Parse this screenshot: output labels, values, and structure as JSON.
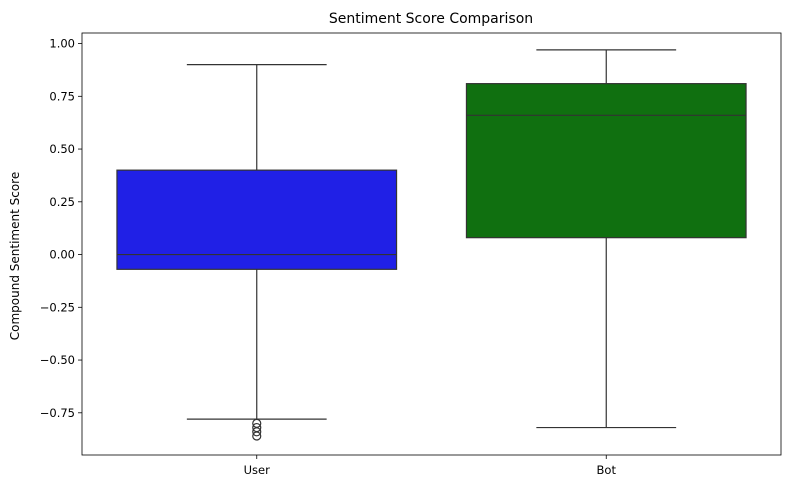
{
  "chart_data": {
    "type": "box",
    "title": "Sentiment Score Comparison",
    "xlabel": "",
    "ylabel": "Compound Sentiment Score",
    "categories": [
      "User",
      "Bot"
    ],
    "ylim": [
      -0.95,
      1.05
    ],
    "yticks": [
      -0.75,
      -0.5,
      -0.25,
      0.0,
      0.25,
      0.5,
      0.75,
      1.0
    ],
    "ytick_labels": [
      "−0.75",
      "−0.50",
      "−0.25",
      "0.00",
      "0.25",
      "0.50",
      "0.75",
      "1.00"
    ],
    "grid": false,
    "series": [
      {
        "category": "User",
        "color": "#2020e6",
        "whisker_low": -0.78,
        "q1": -0.07,
        "median": 0.0,
        "q3": 0.4,
        "whisker_high": 0.9,
        "outliers": [
          -0.8,
          -0.82,
          -0.84,
          -0.86
        ]
      },
      {
        "category": "Bot",
        "color": "#107010",
        "whisker_low": -0.82,
        "q1": 0.08,
        "median": 0.66,
        "q3": 0.81,
        "whisker_high": 0.97,
        "outliers": []
      }
    ]
  }
}
